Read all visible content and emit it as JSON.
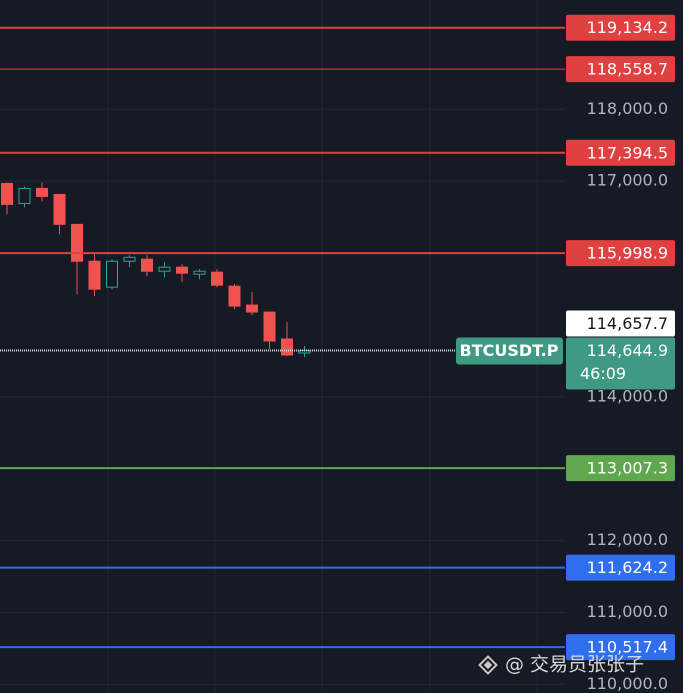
{
  "chart_data": {
    "type": "candlestick",
    "up_color": "#26a69a",
    "down_color": "#ef5350",
    "ylim": [
      109880,
      119520
    ],
    "yticks": [
      {
        "value": 118000,
        "label": "118,000.0"
      },
      {
        "value": 117000,
        "label": "117,000.0"
      },
      {
        "value": 114000,
        "label": "114,000.0"
      },
      {
        "value": 112000,
        "label": "112,000.0"
      },
      {
        "value": 111000,
        "label": "111,000.0"
      },
      {
        "value": 110000,
        "label": "110,000.0"
      }
    ],
    "grid": true,
    "candles": {
      "open": [
        116968,
        116690,
        116899,
        116815,
        116399,
        115886,
        115526,
        115886,
        115914,
        115747,
        115803,
        115706,
        115734,
        115539,
        115276,
        115179,
        114804,
        114610
      ],
      "high": [
        116982,
        116926,
        116982,
        116815,
        116399,
        115983,
        115914,
        115969,
        115969,
        115872,
        115844,
        115775,
        115775,
        115567,
        115456,
        115179,
        115040,
        114707
      ],
      "low": [
        116538,
        116635,
        116718,
        116260,
        115429,
        115401,
        115498,
        115803,
        115678,
        115664,
        115595,
        115636,
        115526,
        115220,
        115137,
        114665,
        114568,
        114555
      ],
      "close": [
        116677,
        116899,
        116788,
        116399,
        115886,
        115498,
        115886,
        115941,
        115747,
        115803,
        115720,
        115747,
        115553,
        115262,
        115179,
        114777,
        114582,
        114644.9
      ]
    },
    "levels": [
      {
        "value": 119134.2,
        "label": "119,134.2",
        "color": "#e0403f",
        "line_width": 2
      },
      {
        "value": 118558.7,
        "label": "118,558.7",
        "color": "#e0403f",
        "line_width": 1
      },
      {
        "value": 117394.5,
        "label": "117,394.5",
        "color": "#e0403f",
        "line_width": 2
      },
      {
        "value": 115998.9,
        "label": "115,998.9",
        "color": "#e0403f",
        "line_width": 2
      },
      {
        "value": 113007.3,
        "label": "113,007.3",
        "color": "#5fa850",
        "line_width": 2
      },
      {
        "value": 111624.2,
        "label": "111,624.2",
        "color": "#2f6fef",
        "line_width": 2
      },
      {
        "value": 110517.4,
        "label": "110,517.4",
        "color": "#2f6fef",
        "line_width": 2
      }
    ],
    "mark_price": {
      "value": 114657.7,
      "label": "114,657.7"
    },
    "last_price": {
      "symbol": "BTCUSDT.P",
      "value": 114644.9,
      "label": "114,644.9",
      "countdown": "46:09",
      "color": "#3e9a82"
    }
  },
  "watermark": "@ 交易员张张子"
}
